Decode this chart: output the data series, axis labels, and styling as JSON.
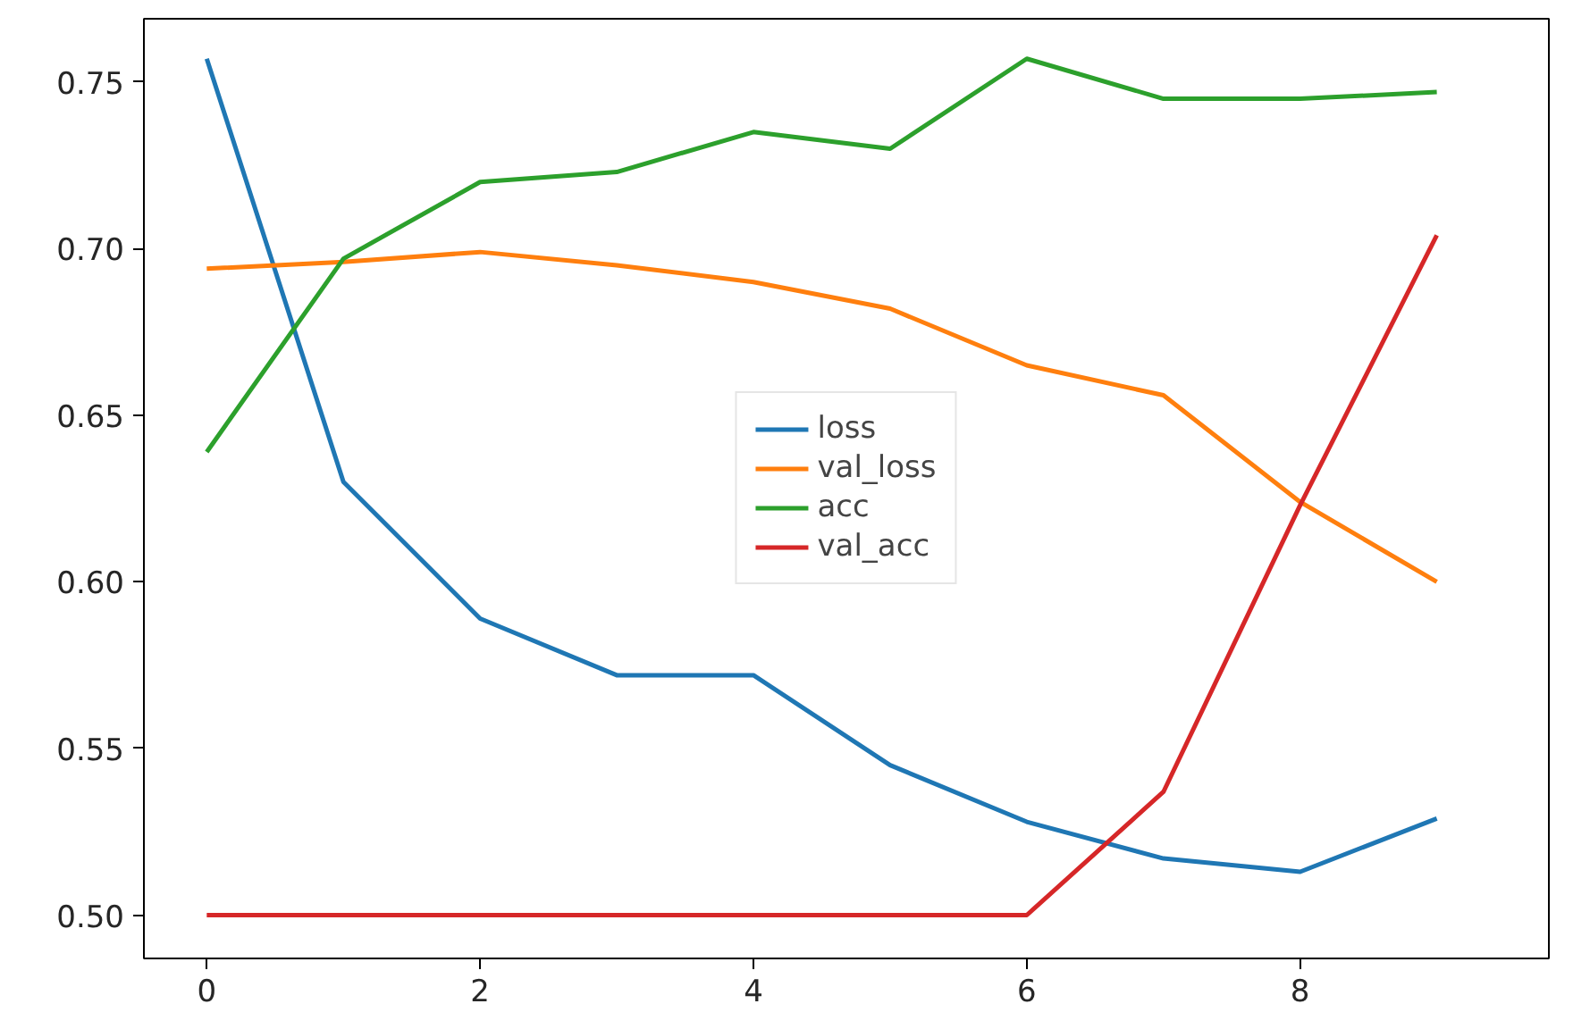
{
  "chart_data": {
    "type": "line",
    "x": [
      0,
      1,
      2,
      3,
      4,
      5,
      6,
      7,
      8,
      9
    ],
    "series": [
      {
        "name": "loss",
        "color": "#1f77b4",
        "values": [
          0.757,
          0.63,
          0.589,
          0.572,
          0.572,
          0.545,
          0.528,
          0.517,
          0.513,
          0.529
        ]
      },
      {
        "name": "val_loss",
        "color": "#ff7f0e",
        "values": [
          0.694,
          0.696,
          0.699,
          0.695,
          0.69,
          0.682,
          0.665,
          0.656,
          0.624,
          0.6
        ]
      },
      {
        "name": "acc",
        "color": "#2ca02c",
        "values": [
          0.639,
          0.697,
          0.72,
          0.723,
          0.735,
          0.73,
          0.757,
          0.745,
          0.745,
          0.747
        ]
      },
      {
        "name": "val_acc",
        "color": "#d62728",
        "values": [
          0.5,
          0.5,
          0.5,
          0.5,
          0.5,
          0.5,
          0.5,
          0.537,
          0.623,
          0.704
        ]
      }
    ],
    "xlim": [
      -0.46,
      9.82
    ],
    "xticks": [
      0,
      2,
      4,
      6,
      8
    ],
    "ylim": [
      0.487,
      0.769
    ],
    "yticks": [
      {
        "value": 0.5,
        "label": "0.50"
      },
      {
        "value": 0.55,
        "label": "0.55"
      },
      {
        "value": 0.6,
        "label": "0.60"
      },
      {
        "value": 0.65,
        "label": "0.65"
      },
      {
        "value": 0.7,
        "label": "0.70"
      },
      {
        "value": 0.75,
        "label": "0.75"
      }
    ],
    "grid": false,
    "legend": "center"
  }
}
